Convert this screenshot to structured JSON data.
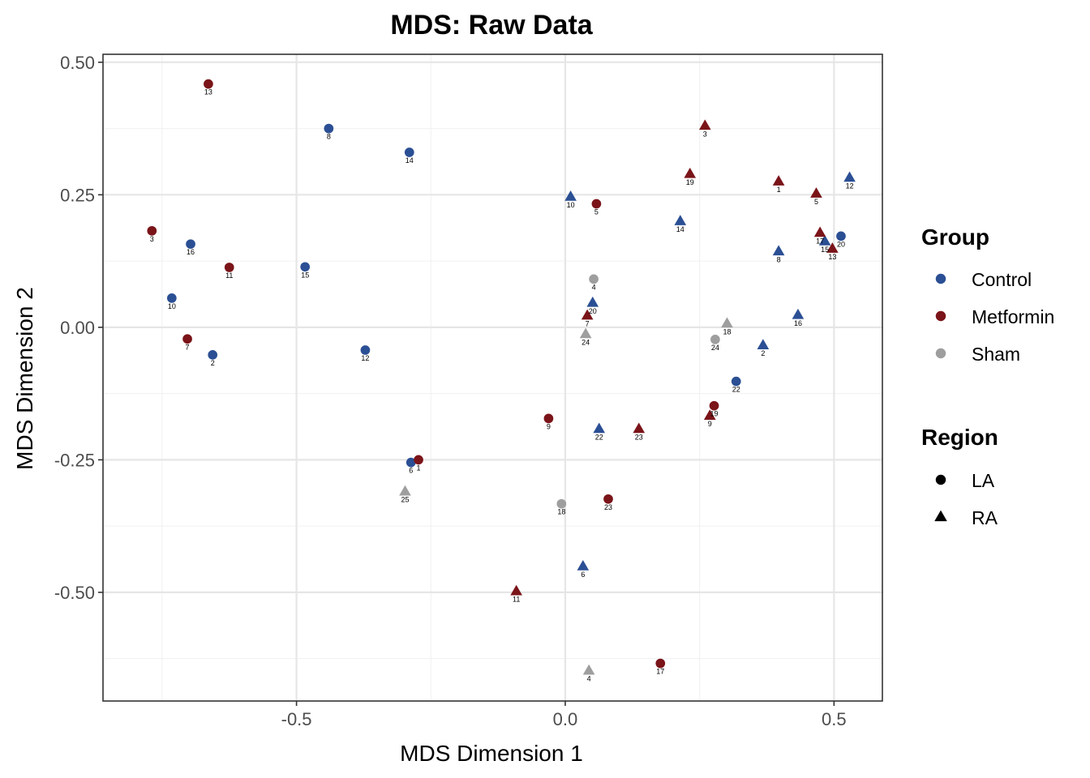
{
  "chart_data": {
    "type": "scatter",
    "title": "MDS: Raw Data",
    "xlabel": "MDS Dimension 1",
    "ylabel": "MDS Dimension 2",
    "xlim": [
      -0.86,
      0.59
    ],
    "ylim": [
      -0.705,
      0.515
    ],
    "x_ticks": [
      -0.5,
      0.0,
      0.5
    ],
    "x_tick_labels": [
      "-0.5",
      "0.0",
      "0.5"
    ],
    "y_ticks": [
      -0.5,
      -0.25,
      0.0,
      0.25,
      0.5
    ],
    "y_tick_labels": [
      "-0.50",
      "-0.25",
      "0.00",
      "0.25",
      "0.50"
    ],
    "grid": true,
    "legend_position": "right",
    "groups": [
      {
        "name": "Control",
        "color": "#2b4f94"
      },
      {
        "name": "Metformin",
        "color": "#7a1419"
      },
      {
        "name": "Sham",
        "color": "#9e9e9e"
      }
    ],
    "regions": [
      {
        "name": "LA",
        "shape": "circle"
      },
      {
        "name": "RA",
        "shape": "triangle"
      }
    ],
    "legend": {
      "group_title": "Group",
      "region_title": "Region"
    },
    "points": [
      {
        "x": -0.44,
        "y": 0.375,
        "group": "Control",
        "region": "LA",
        "label": "8"
      },
      {
        "x": -0.29,
        "y": 0.33,
        "group": "Control",
        "region": "LA",
        "label": "14"
      },
      {
        "x": -0.697,
        "y": 0.157,
        "group": "Control",
        "region": "LA",
        "label": "16"
      },
      {
        "x": -0.484,
        "y": 0.114,
        "group": "Control",
        "region": "LA",
        "label": "15"
      },
      {
        "x": -0.732,
        "y": 0.055,
        "group": "Control",
        "region": "LA",
        "label": "10"
      },
      {
        "x": -0.656,
        "y": -0.052,
        "group": "Control",
        "region": "LA",
        "label": "2"
      },
      {
        "x": -0.372,
        "y": -0.043,
        "group": "Control",
        "region": "LA",
        "label": "12"
      },
      {
        "x": -0.287,
        "y": -0.255,
        "group": "Control",
        "region": "LA",
        "label": "6"
      },
      {
        "x": 0.513,
        "y": 0.172,
        "group": "Control",
        "region": "LA",
        "label": "20"
      },
      {
        "x": 0.318,
        "y": -0.102,
        "group": "Control",
        "region": "LA",
        "label": "22"
      },
      {
        "x": -0.664,
        "y": 0.459,
        "group": "Metformin",
        "region": "LA",
        "label": "13"
      },
      {
        "x": -0.769,
        "y": 0.182,
        "group": "Metformin",
        "region": "LA",
        "label": "3"
      },
      {
        "x": -0.625,
        "y": 0.113,
        "group": "Metformin",
        "region": "LA",
        "label": "11"
      },
      {
        "x": -0.703,
        "y": -0.022,
        "group": "Metformin",
        "region": "LA",
        "label": "7"
      },
      {
        "x": -0.273,
        "y": -0.25,
        "group": "Metformin",
        "region": "LA",
        "label": "1"
      },
      {
        "x": 0.058,
        "y": 0.233,
        "group": "Metformin",
        "region": "LA",
        "label": "5"
      },
      {
        "x": -0.031,
        "y": -0.172,
        "group": "Metformin",
        "region": "LA",
        "label": "9"
      },
      {
        "x": 0.08,
        "y": -0.324,
        "group": "Metformin",
        "region": "LA",
        "label": "23"
      },
      {
        "x": 0.177,
        "y": -0.634,
        "group": "Metformin",
        "region": "LA",
        "label": "17"
      },
      {
        "x": 0.277,
        "y": -0.148,
        "group": "Metformin",
        "region": "LA",
        "label": "19"
      },
      {
        "x": 0.053,
        "y": 0.091,
        "group": "Sham",
        "region": "LA",
        "label": "4"
      },
      {
        "x": 0.279,
        "y": -0.023,
        "group": "Sham",
        "region": "LA",
        "label": "24"
      },
      {
        "x": -0.007,
        "y": -0.333,
        "group": "Sham",
        "region": "LA",
        "label": "18"
      },
      {
        "x": 0.01,
        "y": 0.246,
        "group": "Control",
        "region": "RA",
        "label": "10"
      },
      {
        "x": 0.214,
        "y": 0.2,
        "group": "Control",
        "region": "RA",
        "label": "14"
      },
      {
        "x": 0.397,
        "y": 0.143,
        "group": "Control",
        "region": "RA",
        "label": "8"
      },
      {
        "x": 0.529,
        "y": 0.282,
        "group": "Control",
        "region": "RA",
        "label": "12"
      },
      {
        "x": 0.483,
        "y": 0.162,
        "group": "Control",
        "region": "RA",
        "label": "15"
      },
      {
        "x": 0.051,
        "y": 0.046,
        "group": "Control",
        "region": "RA",
        "label": "20"
      },
      {
        "x": 0.433,
        "y": 0.023,
        "group": "Control",
        "region": "RA",
        "label": "16"
      },
      {
        "x": 0.368,
        "y": -0.034,
        "group": "Control",
        "region": "RA",
        "label": "2"
      },
      {
        "x": 0.063,
        "y": -0.192,
        "group": "Control",
        "region": "RA",
        "label": "22"
      },
      {
        "x": 0.033,
        "y": -0.451,
        "group": "Control",
        "region": "RA",
        "label": "6"
      },
      {
        "x": 0.26,
        "y": 0.38,
        "group": "Metformin",
        "region": "RA",
        "label": "3"
      },
      {
        "x": 0.232,
        "y": 0.289,
        "group": "Metformin",
        "region": "RA",
        "label": "19"
      },
      {
        "x": 0.397,
        "y": 0.275,
        "group": "Metformin",
        "region": "RA",
        "label": "1"
      },
      {
        "x": 0.467,
        "y": 0.252,
        "group": "Metformin",
        "region": "RA",
        "label": "5"
      },
      {
        "x": 0.474,
        "y": 0.178,
        "group": "Metformin",
        "region": "RA",
        "label": "17"
      },
      {
        "x": 0.497,
        "y": 0.148,
        "group": "Metformin",
        "region": "RA",
        "label": "13"
      },
      {
        "x": 0.041,
        "y": 0.022,
        "group": "Metformin",
        "region": "RA",
        "label": "7"
      },
      {
        "x": 0.269,
        "y": -0.167,
        "group": "Metformin",
        "region": "RA",
        "label": "9"
      },
      {
        "x": 0.137,
        "y": -0.192,
        "group": "Metformin",
        "region": "RA",
        "label": "23"
      },
      {
        "x": -0.091,
        "y": -0.498,
        "group": "Metformin",
        "region": "RA",
        "label": "11"
      },
      {
        "x": 0.301,
        "y": 0.007,
        "group": "Sham",
        "region": "RA",
        "label": "18"
      },
      {
        "x": 0.038,
        "y": -0.013,
        "group": "Sham",
        "region": "RA",
        "label": "24"
      },
      {
        "x": -0.298,
        "y": -0.31,
        "group": "Sham",
        "region": "RA",
        "label": "25"
      },
      {
        "x": 0.044,
        "y": -0.648,
        "group": "Sham",
        "region": "RA",
        "label": "4"
      }
    ]
  }
}
